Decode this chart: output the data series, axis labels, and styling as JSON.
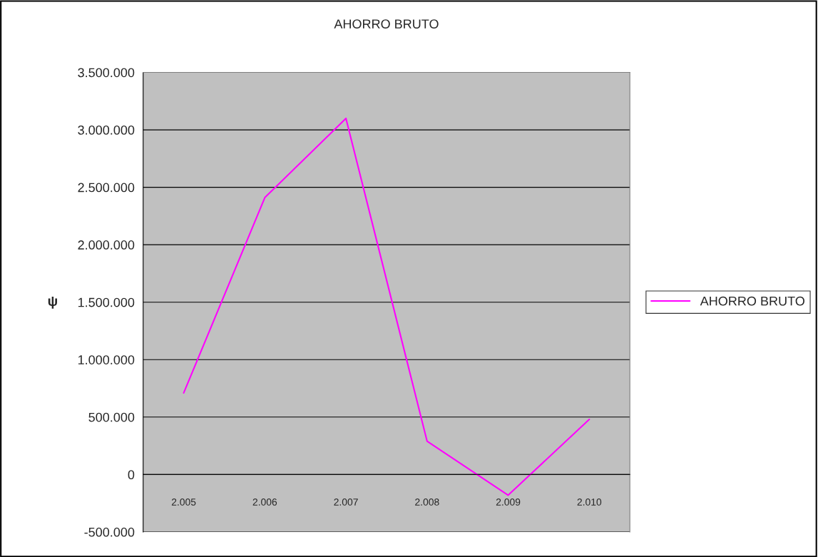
{
  "chart_data": {
    "type": "line",
    "title": "AHORRO BRUTO",
    "ylabel": "ψ",
    "categories": [
      "2.005",
      "2.006",
      "2.007",
      "2.008",
      "2.009",
      "2.010"
    ],
    "series": [
      {
        "name": "AHORRO BRUTO",
        "color": "#ff00ff",
        "values": [
          710000,
          2410000,
          3100000,
          290000,
          -180000,
          480000
        ]
      }
    ],
    "ylim": [
      -500000,
      3500000
    ],
    "yticks": [
      {
        "value": -500000,
        "label": "-500.000"
      },
      {
        "value": 0,
        "label": "0"
      },
      {
        "value": 500000,
        "label": "500.000"
      },
      {
        "value": 1000000,
        "label": "1.000.000"
      },
      {
        "value": 1500000,
        "label": "1.500.000"
      },
      {
        "value": 2000000,
        "label": "2.000.000"
      },
      {
        "value": 2500000,
        "label": "2.500.000"
      },
      {
        "value": 3000000,
        "label": "3.000.000"
      },
      {
        "value": 3500000,
        "label": "3.500.000"
      }
    ],
    "grid": "y",
    "legend": "right",
    "marker": "none",
    "line_style": "solid"
  }
}
